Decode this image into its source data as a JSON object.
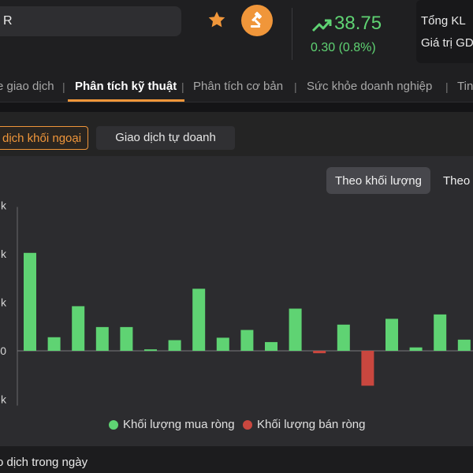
{
  "header": {
    "search_value": "R",
    "price": "38.75",
    "change": "0.30 (0.8%)",
    "stat_labels": [
      "Tổng KL",
      "Giá trị GD"
    ],
    "colors": {
      "up": "#5fd373",
      "down": "#c9473f",
      "accent": "#f0963a"
    },
    "icons": [
      "star-icon",
      "gavel-icon",
      "trend-up-icon"
    ]
  },
  "tabs": [
    {
      "label": "e giao dịch",
      "active": false
    },
    {
      "label": "Phân tích kỹ thuật",
      "active": true
    },
    {
      "label": "Phân tích cơ bản",
      "active": false
    },
    {
      "label": "Sức khỏe doanh nghiệp",
      "active": false
    },
    {
      "label": "Tin",
      "active": false
    }
  ],
  "tab_separator": "|",
  "subtabs": {
    "active": "dịch khối ngoại",
    "other": "Giao dịch tự doanh"
  },
  "toggle": {
    "active": "Theo khối lượng",
    "other": "Theo"
  },
  "chart_data": {
    "type": "bar",
    "ytick_labels": [
      "k",
      "k",
      "k",
      "0",
      "k"
    ],
    "ylim": [
      -1,
      3
    ],
    "yticks": [
      3,
      2,
      1,
      0,
      -1
    ],
    "series": [
      {
        "name": "Khối lượng mua ròng",
        "color": "#5fd373"
      },
      {
        "name": "Khối lượng bán ròng",
        "color": "#c9473f"
      }
    ],
    "values": [
      2.02,
      0.28,
      0.92,
      0.49,
      0.49,
      0.03,
      0.22,
      1.28,
      0.27,
      0.43,
      0.18,
      0.87,
      -0.05,
      0.54,
      -0.72,
      0.66,
      0.07,
      0.75,
      0.23
    ],
    "legend_position": "bottom"
  },
  "footer": {
    "label": "o dịch trong ngày"
  }
}
